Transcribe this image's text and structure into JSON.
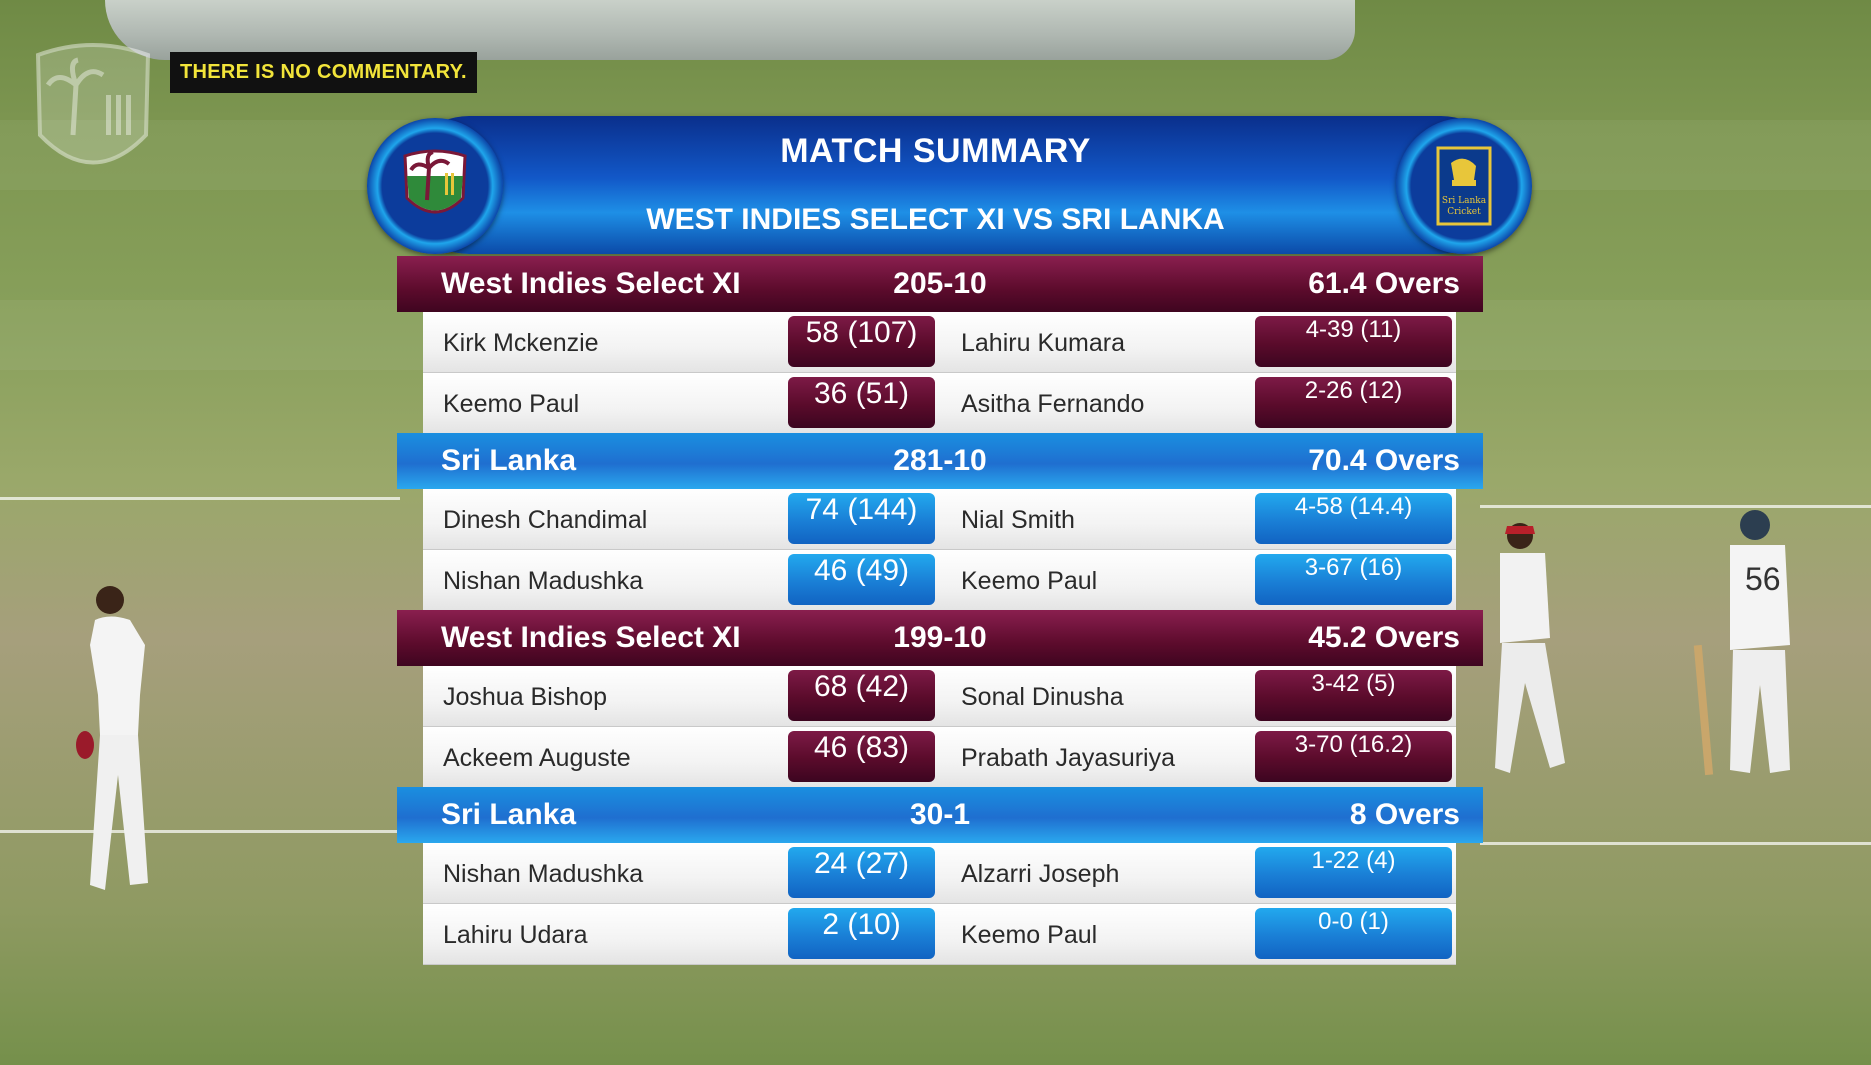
{
  "commentary_notice": "THERE IS NO COMMENTARY.",
  "header": {
    "title": "MATCH SUMMARY",
    "subtitle": "WEST INDIES SELECT XI VS SRI LANKA"
  },
  "colors": {
    "west_indies": "#5c0b2c",
    "sri_lanka": "#1a7fd6",
    "header_blue": "#1258c8"
  },
  "innings": [
    {
      "team": "West Indies Select XI",
      "score": "205-10",
      "overs": "61.4 Overs",
      "theme": "wi",
      "rows": [
        {
          "batter": "Kirk Mckenzie",
          "bat": "58 (107)",
          "bowler": "Lahiru Kumara",
          "bowl": "4-39 (11)"
        },
        {
          "batter": "Keemo Paul",
          "bat": "36 (51)",
          "bowler": "Asitha Fernando",
          "bowl": "2-26 (12)"
        }
      ]
    },
    {
      "team": "Sri Lanka",
      "score": "281-10",
      "overs": "70.4 Overs",
      "theme": "sl",
      "rows": [
        {
          "batter": "Dinesh Chandimal",
          "bat": "74 (144)",
          "bowler": "Nial Smith",
          "bowl": "4-58 (14.4)"
        },
        {
          "batter": "Nishan Madushka",
          "bat": "46 (49)",
          "bowler": "Keemo Paul",
          "bowl": "3-67 (16)"
        }
      ]
    },
    {
      "team": "West Indies Select XI",
      "score": "199-10",
      "overs": "45.2 Overs",
      "theme": "wi",
      "rows": [
        {
          "batter": "Joshua Bishop",
          "bat": "68 (42)",
          "bowler": "Sonal Dinusha",
          "bowl": "3-42 (5)"
        },
        {
          "batter": "Ackeem Auguste",
          "bat": "46 (83)",
          "bowler": "Prabath Jayasuriya",
          "bowl": "3-70 (16.2)"
        }
      ]
    },
    {
      "team": "Sri Lanka",
      "score": "30-1",
      "overs": "8 Overs",
      "theme": "sl",
      "rows": [
        {
          "batter": "Nishan Madushka",
          "bat": "24 (27)",
          "bowler": "Alzarri Joseph",
          "bowl": "1-22 (4)"
        },
        {
          "batter": "Lahiru Udara",
          "bat": "2 (10)",
          "bowler": "Keemo Paul",
          "bowl": "0-0 (1)"
        }
      ]
    }
  ],
  "sl_badge_text": [
    "Sri Lanka",
    "Cricket"
  ],
  "player_shirt_number": "56"
}
